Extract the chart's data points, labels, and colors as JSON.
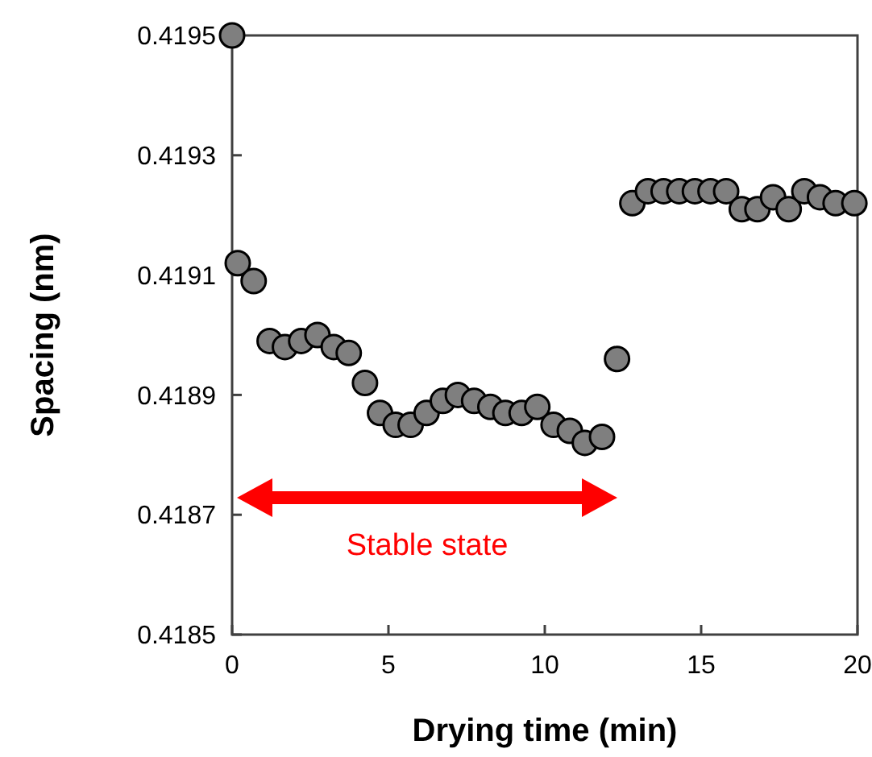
{
  "chart_data": {
    "type": "scatter",
    "xlabel": "Drying time (min)",
    "ylabel": "Spacing (nm)",
    "xlim": [
      0,
      20
    ],
    "xticks": [
      0,
      5,
      10,
      15,
      20
    ],
    "ylim": [
      0.4185,
      0.4195
    ],
    "yticks": [
      {
        "value": 0.4185,
        "label": "0.4185"
      },
      {
        "value": 0.4187,
        "label": "0.4187"
      },
      {
        "value": 0.4189,
        "label": "0.4189"
      },
      {
        "value": 0.4191,
        "label": "0.4191"
      },
      {
        "value": 0.4193,
        "label": "0.4193"
      },
      {
        "value": 0.4195,
        "label": "0.4195"
      }
    ],
    "grid": false,
    "marker": "circle",
    "series": [
      {
        "color": "#7f7f7f",
        "x": [
          0,
          0.18,
          0.69,
          1.2,
          1.69,
          2.21,
          2.73,
          3.25,
          3.73,
          4.25,
          4.73,
          5.23,
          5.71,
          6.22,
          6.74,
          7.22,
          7.74,
          8.26,
          8.74,
          9.26,
          9.76,
          10.28,
          10.8,
          11.28,
          11.83,
          12.31,
          12.8,
          13.3,
          13.8,
          14.3,
          14.8,
          15.3,
          15.8,
          16.3,
          16.8,
          17.3,
          17.8,
          18.3,
          18.8,
          19.3,
          19.9
        ],
        "values": [
          0.4195,
          0.41912,
          0.41909,
          0.41899,
          0.41898,
          0.41899,
          0.419,
          0.41898,
          0.41897,
          0.41892,
          0.41887,
          0.41885,
          0.41885,
          0.41887,
          0.41889,
          0.4189,
          0.41889,
          0.41888,
          0.41887,
          0.41887,
          0.41888,
          0.41885,
          0.41884,
          0.41882,
          0.41883,
          0.41896,
          0.41922,
          0.41924,
          0.41924,
          0.41924,
          0.41924,
          0.41924,
          0.41924,
          0.41921,
          0.41921,
          0.41923,
          0.41921,
          0.41924,
          0.41923,
          0.41922,
          0.41922
        ]
      }
    ],
    "annotations": [
      "Stable state"
    ]
  }
}
